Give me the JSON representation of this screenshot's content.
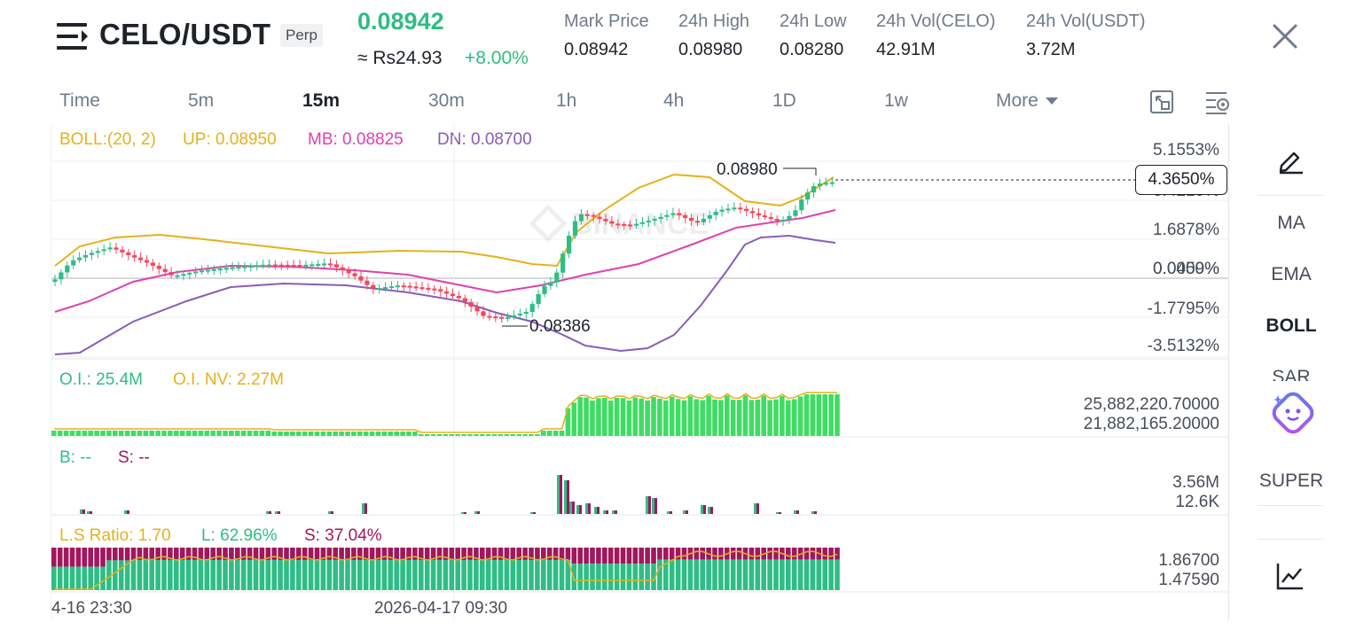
{
  "header": {
    "symbol": "CELO/USDT",
    "contract_type": "Perp",
    "last_price": "0.08942",
    "local_price": "≈ Rs24.93",
    "change_pct": "+8.00%",
    "stats": [
      {
        "label": "Mark Price",
        "value": "0.08942"
      },
      {
        "label": "24h High",
        "value": "0.08980"
      },
      {
        "label": "24h Low",
        "value": "0.08280"
      },
      {
        "label": "24h Vol(CELO)",
        "value": "42.91M"
      },
      {
        "label": "24h Vol(USDT)",
        "value": "3.72M"
      }
    ]
  },
  "timeframes": [
    "Time",
    "5m",
    "15m",
    "30m",
    "1h",
    "4h",
    "1D",
    "1w",
    "More"
  ],
  "active_timeframe": "15m",
  "boll": {
    "params": "BOLL:(20, 2)",
    "up": "UP: 0.08950",
    "mb": "MB: 0.08825",
    "dn": "DN: 0.08700"
  },
  "price_axis": [
    "5.1553%",
    "3.4215%",
    "1.6878%",
    "0.0000%",
    "0.0459%",
    "-1.7795%",
    "-3.5132%"
  ],
  "current_marker": "4.3650%",
  "high_label": "0.08980",
  "low_label": "0.08386",
  "oi": {
    "oi_label": "O.I.: 25.4M",
    "oi_nv_label": "O.I. NV: 2.27M",
    "axis_top": "25,882,220.70000",
    "axis_bottom": "21,882,165.20000"
  },
  "bs": {
    "b_label": "B: --",
    "s_label": "S: --",
    "axis_top": "3.56M",
    "axis_bottom": "12.6K"
  },
  "ls": {
    "ratio_label": "L.S Ratio: 1.70",
    "l_label": "L: 62.96%",
    "s_label": "S: 37.04%",
    "axis_top": "1.86700",
    "axis_bottom": "1.47590"
  },
  "dates": [
    "4-16 23:30",
    "2026-04-17 09:30"
  ],
  "watermark": "BINANCE",
  "right_panel": [
    "MA",
    "EMA",
    "BOLL",
    "SAR",
    "SUPER"
  ],
  "right_active": "BOLL",
  "icons": [
    "menu-icon",
    "close-icon",
    "fullscreen-icon",
    "chart-settings-icon",
    "pencil-icon",
    "ai-assistant-icon",
    "indicator-chart-icon"
  ],
  "colors": {
    "up": "#2ebd85",
    "down": "#f6465d",
    "boll_up": "#e6b118",
    "boll_mb": "#e040b0",
    "boll_dn": "#8a5cb8",
    "oi_bar": "#3fdc63",
    "short": "#a0175c"
  }
}
